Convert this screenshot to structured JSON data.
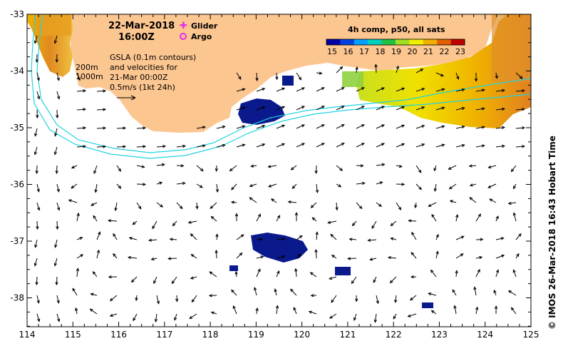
{
  "title": {
    "date": "22-Mar-2018",
    "time": "16:00Z"
  },
  "legend": {
    "glider": {
      "label": "Glider",
      "color": "#e62ee6",
      "symbol": "plus"
    },
    "argo": {
      "label": "Argo",
      "color": "#e62ee6",
      "symbol": "circle"
    }
  },
  "annotation": {
    "lines": [
      "GSLA (0.1m contours)",
      "and velocities for",
      "21-Mar 00:00Z",
      "0.5m/s (1kt 24h)"
    ]
  },
  "isobaths": {
    "labels": [
      "200m",
      "1000m"
    ],
    "color": "#22d3e0"
  },
  "colorbar": {
    "title": "4h comp, p50, all sats",
    "ticks": [
      "15",
      "16",
      "17",
      "18",
      "19",
      "20",
      "21",
      "22",
      "23"
    ],
    "colors": [
      "#0000a0",
      "#0040e0",
      "#00a0ff",
      "#00d0c0",
      "#20c040",
      "#a0e020",
      "#f0f000",
      "#f0b000",
      "#e06000",
      "#c00000"
    ]
  },
  "axes": {
    "x_ticks": [
      "114",
      "115",
      "116",
      "117",
      "118",
      "119",
      "120",
      "121",
      "122",
      "123",
      "124",
      "125"
    ],
    "y_ticks": [
      "-33",
      "-34",
      "-35",
      "-36",
      "-37",
      "-38"
    ]
  },
  "colors": {
    "land": "#fcc690",
    "sst_low": "#0a1a8c",
    "arrow": "#000000"
  },
  "side_label": "©  IMOS 26-Mar-2018 16:43 Hobart Time"
}
